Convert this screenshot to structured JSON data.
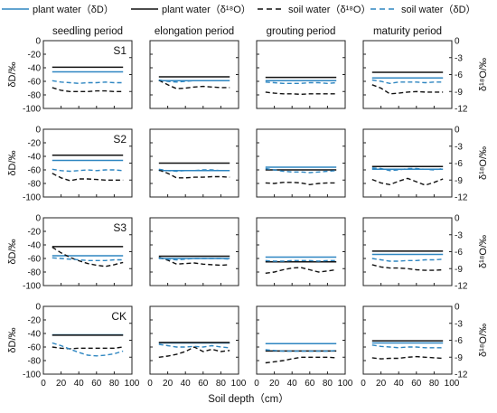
{
  "legend": [
    {
      "label": "plant water（δD）",
      "color": "#2e86c1",
      "dash": "solid"
    },
    {
      "label": "plant water（δ¹⁸O）",
      "color": "#111111",
      "dash": "solid"
    },
    {
      "label": "soil water（δ¹⁸O）",
      "color": "#111111",
      "dash": "dashed"
    },
    {
      "label": "soil water（δD）",
      "color": "#2e86c1",
      "dash": "dashed"
    }
  ],
  "chart_data": {
    "type": "line",
    "layout": "grid 4x4",
    "periods": [
      "seedling period",
      "elongation period",
      "grouting period",
      "maturity period"
    ],
    "treatments": [
      "S1",
      "S2",
      "S3",
      "CK"
    ],
    "xlabel": "Soil depth（cm）",
    "ylabel_left": "δD/‰",
    "ylabel_right": "δ¹⁸O/‰",
    "xlim": [
      0,
      100
    ],
    "xticks": [
      "0",
      "20",
      "40",
      "60",
      "80",
      "100"
    ],
    "ylim_left": [
      -100,
      0
    ],
    "yticks_left": [
      "0",
      "-20",
      "-40",
      "-60",
      "-80",
      "-100"
    ],
    "ylim_right": [
      -12,
      0
    ],
    "yticks_right": [
      "0",
      "-3",
      "-6",
      "-9",
      "-12"
    ],
    "depths": [
      10,
      20,
      30,
      40,
      50,
      60,
      70,
      80,
      90
    ],
    "panels": [
      {
        "treatment": "S1",
        "period": "seedling period",
        "plant_dD": -46,
        "plant_d18O": -4.7,
        "soil_d18O": [
          -8.3,
          -8.8,
          -9.0,
          -9.0,
          -9.0,
          -8.9,
          -8.9,
          -9.0,
          -9.0
        ],
        "soil_dD": [
          -59,
          -61,
          -62,
          -63,
          -62,
          -62,
          -61,
          -62,
          -62
        ]
      },
      {
        "treatment": "S1",
        "period": "elongation period",
        "plant_dD": -59,
        "plant_d18O": -6.4,
        "soil_d18O": [
          -7.0,
          -7.8,
          -8.5,
          -8.4,
          -8.2,
          -8.1,
          -8.2,
          -8.3,
          -8.3
        ],
        "soil_dD": [
          -58,
          -60,
          -61,
          -60,
          -59,
          -59,
          -59,
          -59,
          -59
        ]
      },
      {
        "treatment": "S1",
        "period": "grouting period",
        "plant_dD": -59,
        "plant_d18O": -6.5,
        "soil_d18O": [
          -9.1,
          -9.3,
          -9.4,
          -9.4,
          -9.5,
          -9.4,
          -9.4,
          -9.4,
          -9.4
        ],
        "soil_dD": [
          -61,
          -62,
          -63,
          -63,
          -63,
          -62,
          -62,
          -63,
          -62
        ]
      },
      {
        "treatment": "S1",
        "period": "maturity period",
        "plant_dD": -55,
        "plant_d18O": -5.6,
        "soil_d18O": [
          -7.8,
          -8.4,
          -9.4,
          -9.3,
          -9.1,
          -9.0,
          -9.1,
          -9.1,
          -9.1
        ],
        "soil_dD": [
          -58,
          -60,
          -63,
          -61,
          -61,
          -61,
          -62,
          -61,
          -61
        ]
      },
      {
        "treatment": "S2",
        "period": "seedling period",
        "plant_dD": -46,
        "plant_d18O": -4.6,
        "soil_d18O": [
          -7.8,
          -8.6,
          -9.1,
          -8.8,
          -8.8,
          -8.9,
          -9.0,
          -9.0,
          -9.0
        ],
        "soil_dD": [
          -59,
          -61,
          -62,
          -61,
          -60,
          -61,
          -60,
          -60,
          -61
        ]
      },
      {
        "treatment": "S2",
        "period": "elongation period",
        "plant_dD": -61,
        "plant_d18O": -6.0,
        "soil_d18O": [
          -7.2,
          -7.8,
          -8.6,
          -8.6,
          -8.5,
          -8.5,
          -8.4,
          -8.4,
          -8.5
        ],
        "soil_dD": [
          -59,
          -61,
          -62,
          -61,
          -61,
          -60,
          -60,
          -61,
          -61
        ]
      },
      {
        "treatment": "S2",
        "period": "grouting period",
        "plant_dD": -56,
        "plant_d18O": -7.2,
        "soil_d18O": [
          -9.5,
          -9.6,
          -9.4,
          -9.4,
          -9.5,
          -9.8,
          -9.6,
          -9.5,
          -9.5
        ],
        "soil_dD": [
          -58,
          -60,
          -62,
          -63,
          -63,
          -64,
          -63,
          -62,
          -61
        ]
      },
      {
        "treatment": "S2",
        "period": "maturity period",
        "plant_dD": -59,
        "plant_d18O": -6.6,
        "soil_d18O": [
          -8.9,
          -9.5,
          -9.8,
          -9.2,
          -8.7,
          -9.3,
          -9.9,
          -9.4,
          -8.8
        ],
        "soil_dD": [
          -57,
          -58,
          -61,
          -60,
          -58,
          -58,
          -59,
          -60,
          -58
        ]
      },
      {
        "treatment": "S3",
        "period": "seedling period",
        "plant_dD": -56,
        "plant_d18O": -5.1,
        "soil_d18O": [
          -5.2,
          -6.2,
          -7.0,
          -7.6,
          -8.1,
          -8.4,
          -8.6,
          -8.3,
          -7.9
        ],
        "soil_dD": [
          -59,
          -60,
          -61,
          -62,
          -63,
          -63,
          -63,
          -62,
          -62
        ]
      },
      {
        "treatment": "S3",
        "period": "elongation period",
        "plant_dD": -60,
        "plant_d18O": -6.8,
        "soil_d18O": [
          -7.0,
          -7.5,
          -8.2,
          -8.1,
          -8.0,
          -8.2,
          -8.3,
          -8.4,
          -8.3
        ],
        "soil_dD": [
          -59,
          -61,
          -62,
          -61,
          -60,
          -60,
          -60,
          -60,
          -61
        ]
      },
      {
        "treatment": "S3",
        "period": "grouting period",
        "plant_dD": -58,
        "plant_d18O": -7.8,
        "soil_d18O": [
          -9.8,
          -9.6,
          -9.2,
          -8.9,
          -8.8,
          -9.2,
          -9.6,
          -9.4,
          -9.2
        ],
        "soil_dD": [
          -63,
          -64,
          -64,
          -63,
          -63,
          -63,
          -64,
          -63,
          -63
        ]
      },
      {
        "treatment": "S3",
        "period": "maturity period",
        "plant_dD": -54,
        "plant_d18O": -5.9,
        "soil_d18O": [
          -8.3,
          -8.7,
          -8.9,
          -8.9,
          -9.0,
          -9.2,
          -9.3,
          -9.3,
          -9.2
        ],
        "soil_dD": [
          -60,
          -62,
          -64,
          -64,
          -63,
          -63,
          -62,
          -62,
          -61
        ]
      },
      {
        "treatment": "CK",
        "period": "seedling period",
        "plant_dD": -42,
        "plant_d18O": -5.1,
        "soil_d18O": [
          -7.2,
          -7.4,
          -7.5,
          -7.4,
          -7.4,
          -7.4,
          -7.4,
          -7.4,
          -7.2
        ],
        "soil_dD": [
          -54,
          -58,
          -63,
          -68,
          -72,
          -73,
          -72,
          -70,
          -66
        ]
      },
      {
        "treatment": "CK",
        "period": "elongation period",
        "plant_dD": -54,
        "plant_d18O": -6.4,
        "soil_d18O": [
          -9.0,
          -8.8,
          -8.5,
          -8.0,
          -7.2,
          -8.0,
          -7.6,
          -8.0,
          -7.8
        ],
        "soil_dD": [
          -56,
          -58,
          -60,
          -60,
          -59,
          -60,
          -58,
          -60,
          -61
        ]
      },
      {
        "treatment": "CK",
        "period": "grouting period",
        "plant_dD": -55,
        "plant_d18O": -7.9,
        "soil_d18O": [
          -10.0,
          -9.8,
          -9.6,
          -9.3,
          -9.0,
          -9.0,
          -9.0,
          -9.0,
          -9.1
        ],
        "soil_dD": [
          -64,
          -65,
          -66,
          -66,
          -66,
          -66,
          -66,
          -66,
          -65
        ]
      },
      {
        "treatment": "CK",
        "period": "maturity period",
        "plant_dD": -54,
        "plant_d18O": -6.1,
        "soil_d18O": [
          -9.1,
          -9.3,
          -9.2,
          -9.2,
          -9.0,
          -8.9,
          -9.0,
          -9.1,
          -9.2
        ],
        "soil_dD": [
          -57,
          -59,
          -60,
          -61,
          -60,
          -60,
          -61,
          -61,
          -61
        ]
      }
    ]
  }
}
